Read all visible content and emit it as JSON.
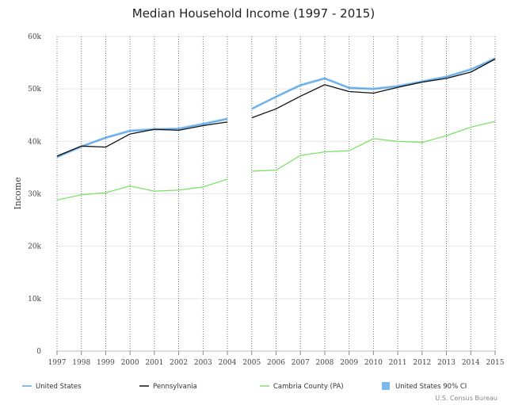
{
  "chart_data": {
    "type": "line",
    "title": "Median Household Income (1997 - 2015)",
    "xlabel": "",
    "ylabel": "Income",
    "source": "U.S. Census Bureau",
    "ylim": [
      0,
      60000
    ],
    "y_ticks": [
      0,
      10000,
      20000,
      30000,
      40000,
      50000,
      60000
    ],
    "y_tick_labels": [
      "0",
      "10k",
      "20k",
      "30k",
      "40k",
      "50k",
      "60k"
    ],
    "x": [
      1997,
      1998,
      1999,
      2000,
      2001,
      2002,
      2003,
      2004,
      2005,
      2006,
      2007,
      2008,
      2009,
      2010,
      2011,
      2012,
      2013,
      2014,
      2015
    ],
    "x_tick_labels": [
      "1997",
      "1998",
      "1999",
      "2000",
      "2001",
      "2002",
      "2003",
      "2004",
      "2005",
      "2006",
      "2007",
      "2008",
      "2009",
      "2010",
      "2011",
      "2012",
      "2013",
      "2014",
      "2015"
    ],
    "gap_after": 2004,
    "series": [
      {
        "name": "United States",
        "color": "#5aa6e6",
        "values": [
          37000,
          39000,
          40700,
          42000,
          42300,
          42400,
          43300,
          44300,
          46200,
          48500,
          50700,
          52000,
          50200,
          50000,
          50500,
          51400,
          52300,
          53700,
          55800
        ]
      },
      {
        "name": "Pennsylvania",
        "color": "#111111",
        "values": [
          37200,
          39100,
          38900,
          41400,
          42300,
          42100,
          43000,
          43700,
          44500,
          46200,
          48600,
          50800,
          49500,
          49200,
          50300,
          51300,
          52000,
          53200,
          55700
        ]
      },
      {
        "name": "Cambria County (PA)",
        "color": "#7de36a",
        "values": [
          28800,
          29800,
          30200,
          31500,
          30500,
          30700,
          31300,
          32800,
          34300,
          34500,
          37300,
          38000,
          38200,
          40500,
          40000,
          39800,
          41100,
          42700,
          43800
        ]
      }
    ],
    "confidence_band": {
      "name": "United States 90% CI",
      "color": "#5aa6e6",
      "half_width": 250
    },
    "legend_position": "bottom"
  }
}
